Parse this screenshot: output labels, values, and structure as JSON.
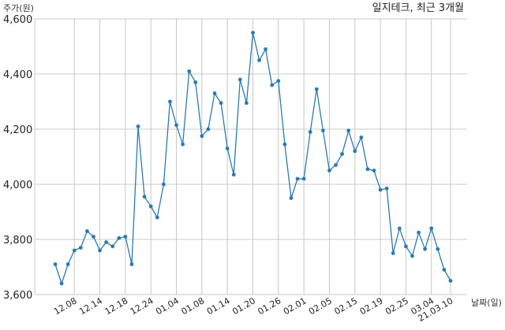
{
  "chart_data": {
    "type": "line",
    "title": "일지테크, 최근 3개월",
    "ylabel": "주가(원)",
    "xlabel": "날짜(일)",
    "ylim": [
      3600,
      4600
    ],
    "yticks": [
      "3,600",
      "3,800",
      "4,000",
      "4,200",
      "4,400",
      "4,600"
    ],
    "ytick_values": [
      3600,
      3800,
      4000,
      4200,
      4400,
      4600
    ],
    "xtick_labels": [
      "12.08",
      "12.14",
      "12.18",
      "12.24",
      "01.04",
      "01.08",
      "01.14",
      "01.20",
      "01.26",
      "02.01",
      "02.05",
      "02.15",
      "02.19",
      "02.25",
      "03.04",
      "21.03.10"
    ],
    "xtick_index": [
      3,
      7,
      11,
      15,
      19,
      23,
      27,
      31,
      35,
      39,
      43,
      47,
      51,
      55,
      59,
      62
    ],
    "grid": true,
    "color": "#2b7bb0",
    "series": [
      {
        "name": "",
        "values": [
          3710,
          3640,
          3710,
          3760,
          3770,
          3830,
          3810,
          3760,
          3790,
          3775,
          3805,
          3810,
          3710,
          4210,
          3955,
          3920,
          3880,
          4000,
          4300,
          4215,
          4145,
          4410,
          4370,
          4175,
          4200,
          4330,
          4295,
          4130,
          4035,
          4380,
          4295,
          4550,
          4450,
          4490,
          4360,
          4375,
          4145,
          3950,
          4020,
          4020,
          4190,
          4345,
          4195,
          4050,
          4070,
          4110,
          4195,
          4120,
          4170,
          4055,
          4050,
          3980,
          3985,
          3750,
          3840,
          3775,
          3740,
          3825,
          3765,
          3840,
          3765,
          3690,
          3650
        ]
      }
    ]
  }
}
